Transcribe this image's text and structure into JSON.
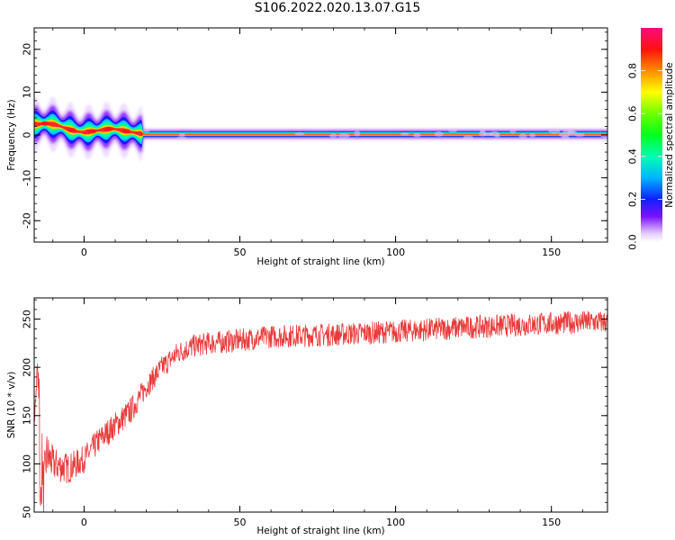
{
  "title": "S106.2022.020.13.07.G15",
  "chart_data": [
    {
      "type": "heatmap",
      "xlabel": "Height of straight line (km)",
      "ylabel": "Frequency (Hz)",
      "xlim": [
        -16,
        168
      ],
      "ylim": [
        -25,
        25
      ],
      "xticks": [
        0,
        50,
        100,
        150
      ],
      "yticks": [
        -20,
        -10,
        0,
        10,
        20
      ],
      "colorbar": {
        "label": "Normalized spectral amplitude",
        "range": [
          0,
          1
        ],
        "ticks": [
          "0.0",
          "0.2",
          "0.4",
          "0.6",
          "0.8"
        ],
        "tick_values": [
          0,
          0.2,
          0.4,
          0.6,
          0.8
        ]
      },
      "ridge": {
        "description_x": [
          -15,
          -12,
          -9,
          -6,
          -3,
          0,
          3,
          6,
          9,
          12,
          15,
          19,
          168
        ],
        "frequency_hz": [
          2.5,
          2.7,
          2.4,
          1.6,
          0.9,
          0.6,
          0.9,
          1.2,
          1.5,
          1.1,
          0.7,
          0.2,
          0.2
        ]
      },
      "label_texts": [
        "Height of straight line (km)",
        "Frequency (Hz)",
        "Normalized spectral amplitude"
      ]
    },
    {
      "type": "line",
      "xlabel": "Height of straight line (km)",
      "ylabel": "SNR (10 * v/v)",
      "xlim": [
        -16,
        168
      ],
      "ylim": [
        50,
        272
      ],
      "xticks": [
        0,
        50,
        100,
        150
      ],
      "yticks": [
        50,
        100,
        150,
        200,
        250
      ],
      "series": [
        {
          "name": "SNR",
          "color": "#e83a3a",
          "trend_x": [
            -16,
            -15,
            -14,
            -13,
            -12,
            -10,
            -5,
            0,
            5,
            10,
            15,
            20,
            25,
            30,
            35,
            40,
            50,
            60,
            80,
            100,
            120,
            140,
            160,
            168
          ],
          "trend_y": [
            140,
            200,
            150,
            70,
            110,
            100,
            95,
            105,
            125,
            140,
            155,
            180,
            200,
            215,
            222,
            225,
            228,
            232,
            234,
            237,
            241,
            244,
            247,
            247
          ],
          "noise_amplitude": [
            5,
            8,
            25,
            30,
            25,
            18,
            16,
            14,
            14,
            14,
            14,
            12,
            12,
            12,
            12,
            12,
            12,
            12,
            12,
            12,
            12,
            12,
            12,
            12
          ]
        }
      ]
    }
  ]
}
